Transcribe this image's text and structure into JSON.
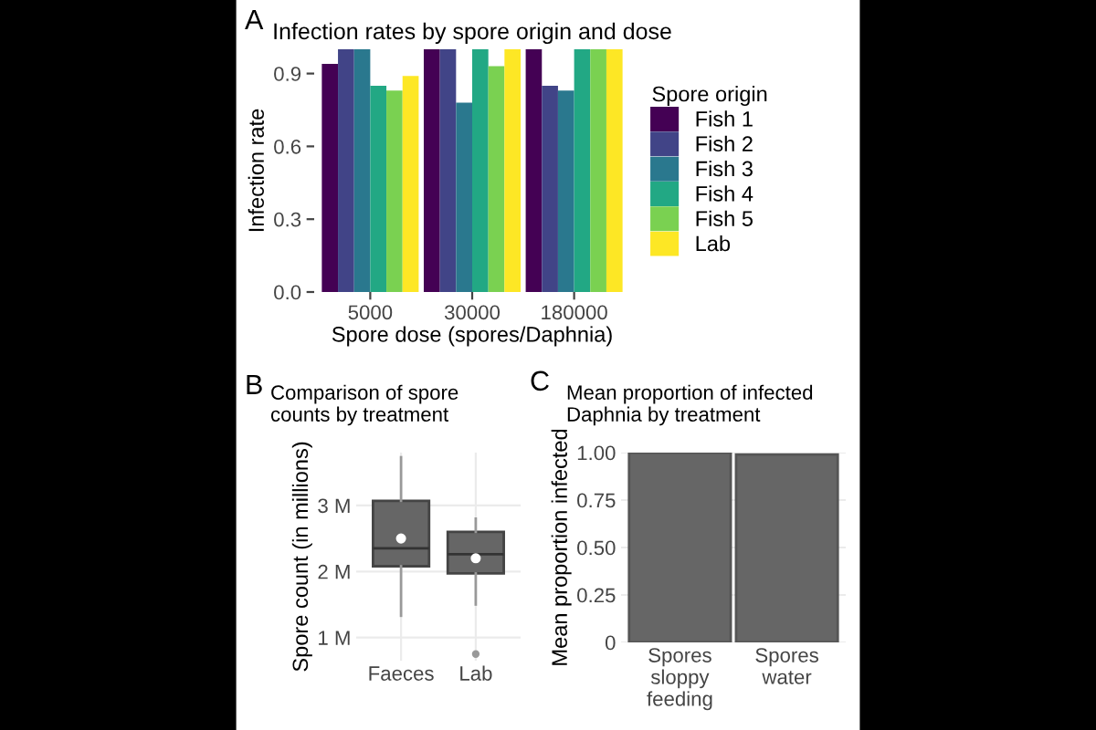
{
  "chart_data": [
    {
      "type": "bar",
      "title": "Infection rates by spore origin and dose",
      "xlabel": "Spore dose (spores/Daphnia)",
      "ylabel": "Infection rate",
      "legend_title": "Spore origin",
      "annotations": [
        "A"
      ],
      "categories": [
        "5000",
        "30000",
        "180000"
      ],
      "series": [
        {
          "name": "Fish 1",
          "color": "#440154",
          "values": [
            0.94,
            1.0,
            1.0
          ]
        },
        {
          "name": "Fish 2",
          "color": "#414487",
          "values": [
            1.0,
            1.0,
            0.85
          ]
        },
        {
          "name": "Fish 3",
          "color": "#2a788e",
          "values": [
            1.0,
            0.78,
            0.83
          ]
        },
        {
          "name": "Fish 4",
          "color": "#22a884",
          "values": [
            0.85,
            1.0,
            1.0
          ]
        },
        {
          "name": "Fish 5",
          "color": "#7ad151",
          "values": [
            0.83,
            0.93,
            1.0
          ]
        },
        {
          "name": "Lab",
          "color": "#fde725",
          "values": [
            0.89,
            1.0,
            1.0
          ]
        }
      ],
      "ylim": [
        0,
        1.0
      ],
      "yticks": [
        {
          "value": 0,
          "label": "0.0"
        },
        0.3,
        0.6,
        0.9
      ],
      "grid": false,
      "legend": "right"
    },
    {
      "type": "box",
      "title": "Comparison of spore counts by treatment",
      "ylabel": "Spore count (in millions)",
      "annotations": [
        "B"
      ],
      "categories": [
        "Faeces",
        "Lab"
      ],
      "color": "#666666",
      "boxes": [
        {
          "low": 1.33,
          "q1": 2.08,
          "median": 2.35,
          "q3": 3.07,
          "high": 3.73,
          "mean": 2.5
        },
        {
          "low": 1.5,
          "q1": 1.97,
          "median": 2.26,
          "q3": 2.6,
          "high": 2.8,
          "mean": 2.2,
          "outliers": [
            0.75
          ]
        }
      ],
      "ylim": [
        0.65,
        3.8
      ],
      "yticks": [
        {
          "value": 1,
          "label": "1 M"
        },
        {
          "value": 2,
          "label": "2 M"
        },
        {
          "value": 3,
          "label": "3 M"
        }
      ],
      "grid": true
    },
    {
      "type": "bar",
      "title": "Mean proportion of infected Daphnia by treatment",
      "ylabel": "Mean proportion infected",
      "annotations": [
        "C"
      ],
      "categories": [
        "Spores sloppy feeding",
        "Spores water"
      ],
      "values": [
        1.0,
        0.99
      ],
      "color": "#666666",
      "ylim": [
        0,
        1.0
      ],
      "yticks": [
        {
          "value": 0,
          "label": "0"
        },
        {
          "value": 0.25,
          "label": "0.25"
        },
        {
          "value": 0.5,
          "label": "0.50"
        },
        {
          "value": 0.75,
          "label": "0.75"
        },
        {
          "value": 1.0,
          "label": "1.00"
        }
      ],
      "grid": true
    }
  ]
}
